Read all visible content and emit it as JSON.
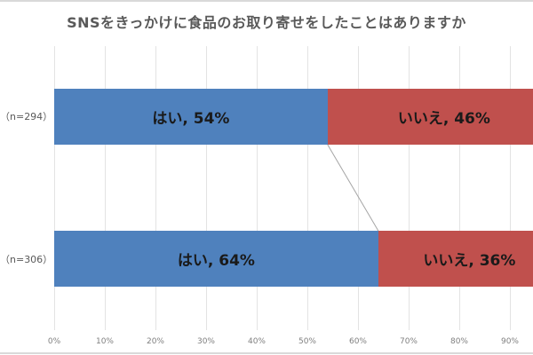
{
  "chart_data": {
    "type": "bar",
    "orientation": "horizontal",
    "stacked": "100%",
    "title": "SNSをきっかけに食品のお取り寄せをしたことはありますか",
    "categories": [
      "（n=294）",
      "（n=306）"
    ],
    "series": [
      {
        "name": "はい",
        "values": [
          54,
          64
        ],
        "color": "#4f81bd",
        "labels": [
          "はい, 54%",
          "はい, 64%"
        ]
      },
      {
        "name": "いいえ",
        "values": [
          46,
          36
        ],
        "color": "#c0504d",
        "labels": [
          "いいえ, 46%",
          "いいえ, 36%"
        ]
      }
    ],
    "xlabel": "",
    "ylabel": "",
    "xlim": [
      0,
      100
    ],
    "x_ticks": [
      "0%",
      "10%",
      "20%",
      "30%",
      "40%",
      "50%",
      "60%",
      "70%",
      "80%",
      "90%"
    ],
    "grid": true,
    "series_lines": true,
    "legend": "none"
  },
  "colors": {
    "yes": "#4f81bd",
    "no": "#c0504d",
    "grid": "#e3e3e3",
    "title_text": "#595959"
  }
}
